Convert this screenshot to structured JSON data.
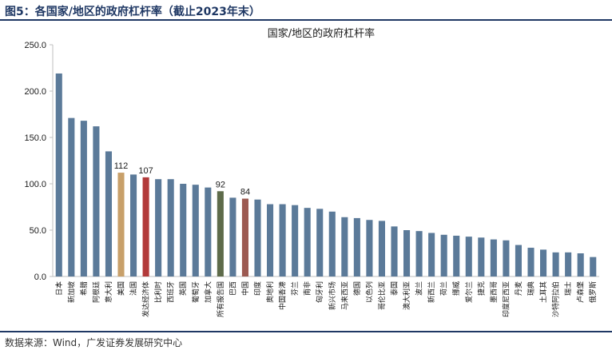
{
  "figure_title": "图5：各国家/地区的政府杠杆率（截止2023年末）",
  "source_note": "数据来源：Wind，广发证券发展研究中心",
  "colors": {
    "default": "#5b7a99",
    "usa": "#c8a06a",
    "developed": "#b23a3a",
    "all": "#5e6b4a",
    "china": "#9c5a52",
    "rule": "#1f3864"
  },
  "chart_data": {
    "type": "bar",
    "title": "国家/地区的政府杠杆率",
    "xlabel": "",
    "ylabel": "",
    "ylim": [
      0,
      250
    ],
    "yticks": [
      "0.0",
      "50.0",
      "100.0",
      "150.0",
      "200.0",
      "250.0"
    ],
    "grid": false,
    "legend": "none",
    "categories": [
      "日本",
      "新加坡",
      "希腊",
      "阿根廷",
      "意大利",
      "美国",
      "法国",
      "发达经济体",
      "比利时",
      "西班牙",
      "英国",
      "葡萄牙",
      "加拿大",
      "所有报告国",
      "巴西",
      "中国",
      "印度",
      "奥地利",
      "中国香港",
      "芬兰",
      "南非",
      "匈牙利",
      "新兴市场",
      "马来西亚",
      "德国",
      "以色列",
      "哥伦比亚",
      "泰国",
      "澳大利亚",
      "波兰",
      "新西兰",
      "荷兰",
      "挪威",
      "爱尔兰",
      "捷克",
      "墨西哥",
      "印度尼西亚",
      "丹麦",
      "瑞典",
      "土耳其",
      "沙特阿拉伯",
      "瑞士",
      "卢森堡",
      "俄罗斯"
    ],
    "values": [
      219,
      171,
      168,
      162,
      135,
      112,
      110,
      107,
      105,
      105,
      100,
      99,
      96,
      92,
      85,
      84,
      83,
      78,
      78,
      77,
      74,
      73,
      70,
      64,
      63,
      61,
      60,
      54,
      50,
      49,
      47,
      45,
      44,
      43,
      42,
      40,
      39,
      34,
      31,
      29,
      26,
      26,
      25,
      21
    ],
    "highlight": {
      "美国": "usa",
      "发达经济体": "developed",
      "所有报告国": "all",
      "中国": "china"
    },
    "data_labels": {
      "美国": "112",
      "发达经济体": "107",
      "所有报告国": "92",
      "中国": "84"
    }
  }
}
